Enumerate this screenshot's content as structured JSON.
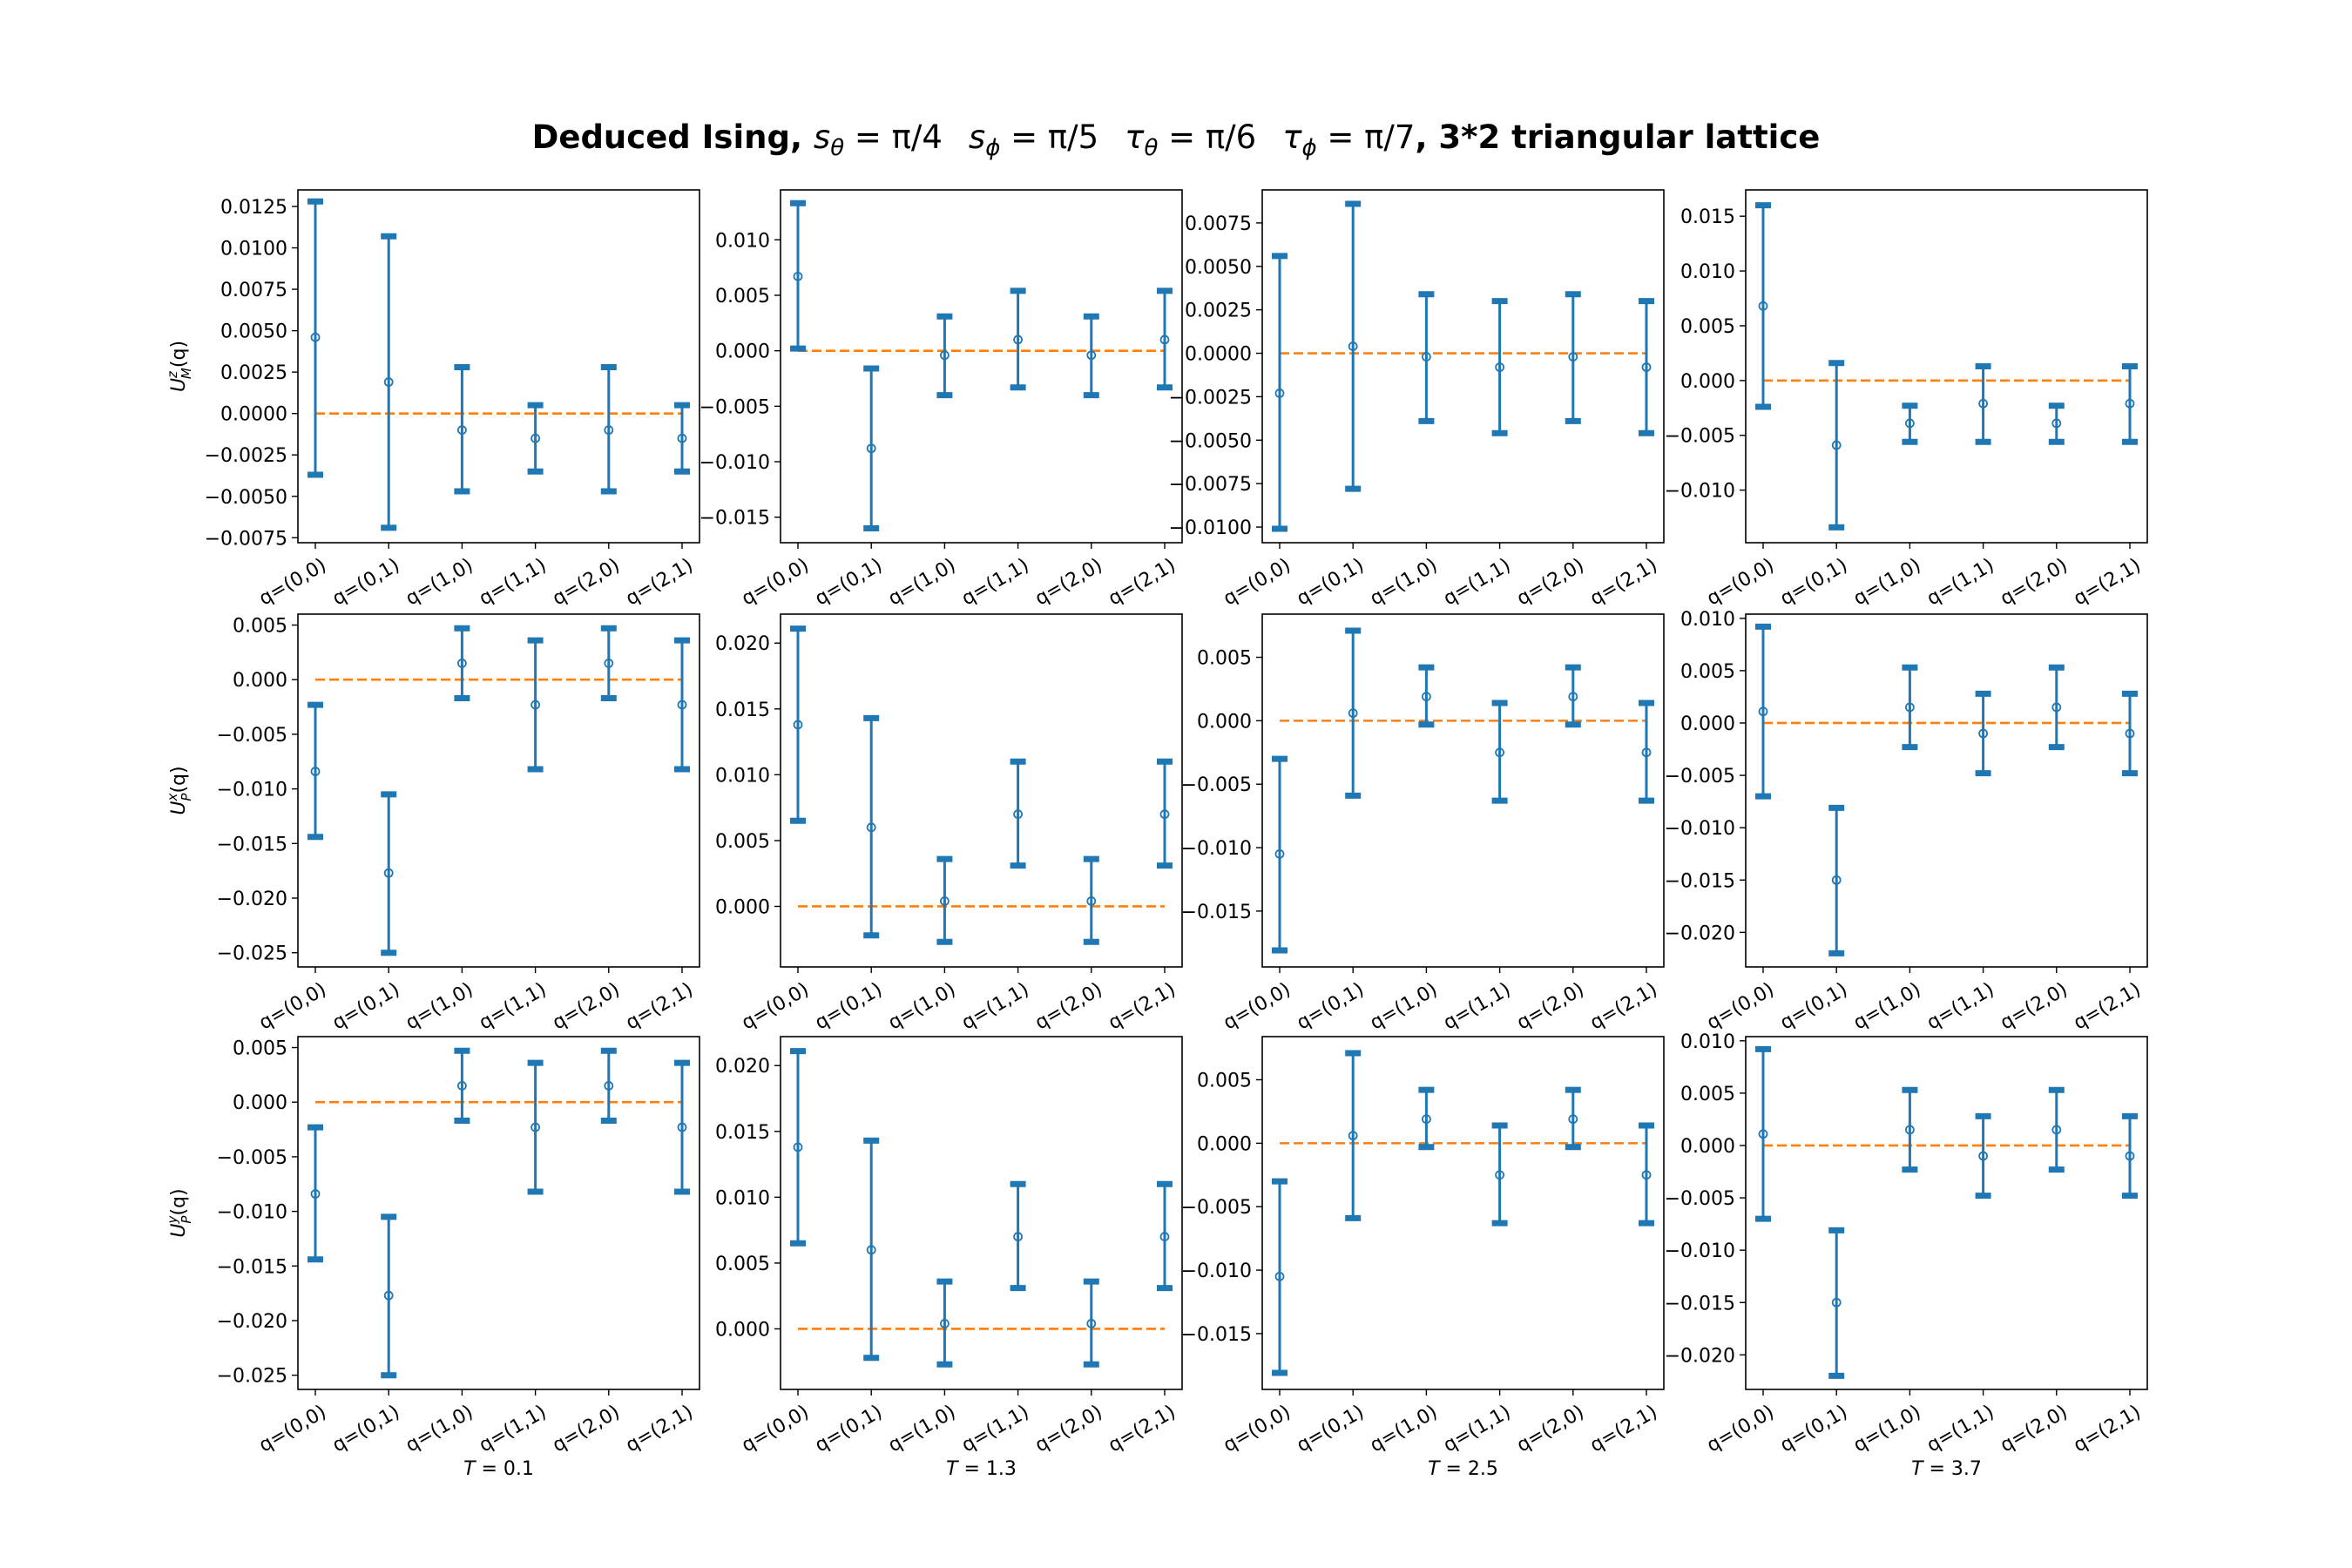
{
  "figure": {
    "title_prefix": "Deduced Ising, ",
    "title_parts": [
      {
        "sym": "s",
        "sub": "θ",
        "val": " = π/4"
      },
      {
        "sym": "s",
        "sub": "ϕ",
        "val": " = π/5"
      },
      {
        "sym": "τ",
        "sub": "θ",
        "val": " = π/6"
      },
      {
        "sym": "τ",
        "sub": "ϕ",
        "val": " = π/7"
      }
    ],
    "title_suffix": ", 3*2 triangular lattice",
    "colors": {
      "errorbar": "#1f77b4",
      "reference": "#ff7f0e",
      "axes": "#000000"
    }
  },
  "chart_data": [
    {
      "type": "errorbar",
      "row": 0,
      "col": 0,
      "ylabel": {
        "sym": "U",
        "sup": "z",
        "sub": "M",
        "arg": "(q)"
      },
      "xlabel": "",
      "categories": [
        "q=(0,0)",
        "q=(0,1)",
        "q=(1,0)",
        "q=(1,1)",
        "q=(2,0)",
        "q=(2,1)"
      ],
      "values": [
        0.0046,
        0.0019,
        -0.001,
        -0.0015,
        -0.001,
        -0.0015
      ],
      "err_low": [
        -0.0037,
        -0.0069,
        -0.0047,
        -0.0035,
        -0.0047,
        -0.0035
      ],
      "err_high": [
        0.0128,
        0.0107,
        0.0028,
        0.0005,
        0.0028,
        0.0005
      ],
      "reference_y": 0,
      "ylim": [
        -0.0078,
        0.0135
      ],
      "yticks": [
        -0.0075,
        -0.005,
        -0.0025,
        0,
        0.0025,
        0.005,
        0.0075,
        0.01,
        0.0125
      ],
      "yticklabels": [
        "−0.0075",
        "−0.0050",
        "−0.0025",
        "0.0000",
        "0.0025",
        "0.0050",
        "0.0075",
        "0.0100",
        "0.0125"
      ]
    },
    {
      "type": "errorbar",
      "row": 0,
      "col": 1,
      "ylabel": null,
      "xlabel": "",
      "categories": [
        "q=(0,0)",
        "q=(0,1)",
        "q=(1,0)",
        "q=(1,1)",
        "q=(2,0)",
        "q=(2,1)"
      ],
      "values": [
        0.0067,
        -0.0088,
        -0.0004,
        0.001,
        -0.0004,
        0.001
      ],
      "err_low": [
        0.0002,
        -0.016,
        -0.004,
        -0.0033,
        -0.004,
        -0.0033
      ],
      "err_high": [
        0.0133,
        -0.0016,
        0.0031,
        0.0054,
        0.0031,
        0.0054
      ],
      "reference_y": 0,
      "ylim": [
        -0.0173,
        0.0145
      ],
      "yticks": [
        -0.015,
        -0.01,
        -0.005,
        0,
        0.005,
        0.01
      ],
      "yticklabels": [
        "−0.015",
        "−0.010",
        "−0.005",
        "0.000",
        "0.005",
        "0.010"
      ]
    },
    {
      "type": "errorbar",
      "row": 0,
      "col": 2,
      "ylabel": null,
      "xlabel": "",
      "categories": [
        "q=(0,0)",
        "q=(0,1)",
        "q=(1,0)",
        "q=(1,1)",
        "q=(2,0)",
        "q=(2,1)"
      ],
      "values": [
        -0.0023,
        0.0004,
        -0.0002,
        -0.0008,
        -0.0002,
        -0.0008
      ],
      "err_low": [
        -0.0101,
        -0.0078,
        -0.0039,
        -0.0046,
        -0.0039,
        -0.0046
      ],
      "err_high": [
        0.0056,
        0.0086,
        0.0034,
        0.003,
        0.0034,
        0.003
      ],
      "reference_y": 0,
      "ylim": [
        -0.0109,
        0.0094
      ],
      "yticks": [
        -0.01,
        -0.0075,
        -0.005,
        -0.0025,
        0,
        0.0025,
        0.005,
        0.0075
      ],
      "yticklabels": [
        "−0.0100",
        "−0.0075",
        "−0.0050",
        "−0.0025",
        "0.0000",
        "0.0025",
        "0.0050",
        "0.0075"
      ]
    },
    {
      "type": "errorbar",
      "row": 0,
      "col": 3,
      "ylabel": null,
      "xlabel": "",
      "categories": [
        "q=(0,0)",
        "q=(0,1)",
        "q=(1,0)",
        "q=(1,1)",
        "q=(2,0)",
        "q=(2,1)"
      ],
      "values": [
        0.0068,
        -0.0059,
        -0.0039,
        -0.0021,
        -0.0039,
        -0.0021
      ],
      "err_low": [
        -0.0024,
        -0.0134,
        -0.0056,
        -0.0056,
        -0.0056,
        -0.0056
      ],
      "err_high": [
        0.016,
        0.0016,
        -0.0023,
        0.0013,
        -0.0023,
        0.0013
      ],
      "reference_y": 0,
      "ylim": [
        -0.0148,
        0.0174
      ],
      "yticks": [
        -0.01,
        -0.005,
        0,
        0.005,
        0.01,
        0.015
      ],
      "yticklabels": [
        "−0.010",
        "−0.005",
        "0.000",
        "0.005",
        "0.010",
        "0.015"
      ]
    },
    {
      "type": "errorbar",
      "row": 1,
      "col": 0,
      "ylabel": {
        "sym": "U",
        "sup": "x",
        "sub": "P",
        "arg": "(q)"
      },
      "xlabel": "",
      "categories": [
        "q=(0,0)",
        "q=(0,1)",
        "q=(1,0)",
        "q=(1,1)",
        "q=(2,0)",
        "q=(2,1)"
      ],
      "values": [
        -0.0084,
        -0.0177,
        0.0015,
        -0.0023,
        0.0015,
        -0.0023
      ],
      "err_low": [
        -0.0144,
        -0.025,
        -0.0017,
        -0.0082,
        -0.0017,
        -0.0082
      ],
      "err_high": [
        -0.0023,
        -0.0105,
        0.0047,
        0.0036,
        0.0047,
        0.0036
      ],
      "reference_y": 0,
      "ylim": [
        -0.0263,
        0.006
      ],
      "yticks": [
        -0.025,
        -0.02,
        -0.015,
        -0.01,
        -0.005,
        0,
        0.005
      ],
      "yticklabels": [
        "−0.025",
        "−0.020",
        "−0.015",
        "−0.010",
        "−0.005",
        "0.000",
        "0.005"
      ]
    },
    {
      "type": "errorbar",
      "row": 1,
      "col": 1,
      "ylabel": null,
      "xlabel": "",
      "categories": [
        "q=(0,0)",
        "q=(0,1)",
        "q=(1,0)",
        "q=(1,1)",
        "q=(2,0)",
        "q=(2,1)"
      ],
      "values": [
        0.0138,
        0.006,
        0.0004,
        0.007,
        0.0004,
        0.007
      ],
      "err_low": [
        0.0065,
        -0.0022,
        -0.0027,
        0.0031,
        -0.0027,
        0.0031
      ],
      "err_high": [
        0.0211,
        0.0143,
        0.0036,
        0.011,
        0.0036,
        0.011
      ],
      "reference_y": 0,
      "ylim": [
        -0.0046,
        0.0222
      ],
      "yticks": [
        0,
        0.005,
        0.01,
        0.015,
        0.02
      ],
      "yticklabels": [
        "0.000",
        "0.005",
        "0.010",
        "0.015",
        "0.020"
      ]
    },
    {
      "type": "errorbar",
      "row": 1,
      "col": 2,
      "ylabel": null,
      "xlabel": "",
      "categories": [
        "q=(0,0)",
        "q=(0,1)",
        "q=(1,0)",
        "q=(1,1)",
        "q=(2,0)",
        "q=(2,1)"
      ],
      "values": [
        -0.0105,
        0.0006,
        0.0019,
        -0.0025,
        0.0019,
        -0.0025
      ],
      "err_low": [
        -0.0181,
        -0.0059,
        -0.0003,
        -0.0063,
        -0.0003,
        -0.0063
      ],
      "err_high": [
        -0.003,
        0.0071,
        0.0042,
        0.0014,
        0.0042,
        0.0014
      ],
      "reference_y": 0,
      "ylim": [
        -0.0194,
        0.0084
      ],
      "yticks": [
        -0.015,
        -0.01,
        -0.005,
        0,
        0.005
      ],
      "yticklabels": [
        "−0.015",
        "−0.010",
        "−0.005",
        "0.000",
        "0.005"
      ]
    },
    {
      "type": "errorbar",
      "row": 1,
      "col": 3,
      "ylabel": null,
      "xlabel": "",
      "categories": [
        "q=(0,0)",
        "q=(0,1)",
        "q=(1,0)",
        "q=(1,1)",
        "q=(2,0)",
        "q=(2,1)"
      ],
      "values": [
        0.0011,
        -0.015,
        0.0015,
        -0.001,
        0.0015,
        -0.001
      ],
      "err_low": [
        -0.007,
        -0.022,
        -0.0023,
        -0.0048,
        -0.0023,
        -0.0048
      ],
      "err_high": [
        0.0092,
        -0.0081,
        0.0053,
        0.0028,
        0.0053,
        0.0028
      ],
      "reference_y": 0,
      "ylim": [
        -0.0233,
        0.0104
      ],
      "yticks": [
        -0.02,
        -0.015,
        -0.01,
        -0.005,
        0,
        0.005,
        0.01
      ],
      "yticklabels": [
        "−0.020",
        "−0.015",
        "−0.010",
        "−0.005",
        "0.000",
        "0.005",
        "0.010"
      ]
    },
    {
      "type": "errorbar",
      "row": 2,
      "col": 0,
      "ylabel": {
        "sym": "U",
        "sup": "y",
        "sub": "P",
        "arg": "(q)"
      },
      "xlabel": "T = 0.1",
      "categories": [
        "q=(0,0)",
        "q=(0,1)",
        "q=(1,0)",
        "q=(1,1)",
        "q=(2,0)",
        "q=(2,1)"
      ],
      "values": [
        -0.0084,
        -0.0177,
        0.0015,
        -0.0023,
        0.0015,
        -0.0023
      ],
      "err_low": [
        -0.0144,
        -0.025,
        -0.0017,
        -0.0082,
        -0.0017,
        -0.0082
      ],
      "err_high": [
        -0.0023,
        -0.0105,
        0.0047,
        0.0036,
        0.0047,
        0.0036
      ],
      "reference_y": 0,
      "ylim": [
        -0.0263,
        0.006
      ],
      "yticks": [
        -0.025,
        -0.02,
        -0.015,
        -0.01,
        -0.005,
        0,
        0.005
      ],
      "yticklabels": [
        "−0.025",
        "−0.020",
        "−0.015",
        "−0.010",
        "−0.005",
        "0.000",
        "0.005"
      ]
    },
    {
      "type": "errorbar",
      "row": 2,
      "col": 1,
      "ylabel": null,
      "xlabel": "T = 1.3",
      "categories": [
        "q=(0,0)",
        "q=(0,1)",
        "q=(1,0)",
        "q=(1,1)",
        "q=(2,0)",
        "q=(2,1)"
      ],
      "values": [
        0.0138,
        0.006,
        0.0004,
        0.007,
        0.0004,
        0.007
      ],
      "err_low": [
        0.0065,
        -0.0022,
        -0.0027,
        0.0031,
        -0.0027,
        0.0031
      ],
      "err_high": [
        0.0211,
        0.0143,
        0.0036,
        0.011,
        0.0036,
        0.011
      ],
      "reference_y": 0,
      "ylim": [
        -0.0046,
        0.0222
      ],
      "yticks": [
        0,
        0.005,
        0.01,
        0.015,
        0.02
      ],
      "yticklabels": [
        "0.000",
        "0.005",
        "0.010",
        "0.015",
        "0.020"
      ]
    },
    {
      "type": "errorbar",
      "row": 2,
      "col": 2,
      "ylabel": null,
      "xlabel": "T = 2.5",
      "categories": [
        "q=(0,0)",
        "q=(0,1)",
        "q=(1,0)",
        "q=(1,1)",
        "q=(2,0)",
        "q=(2,1)"
      ],
      "values": [
        -0.0105,
        0.0006,
        0.0019,
        -0.0025,
        0.0019,
        -0.0025
      ],
      "err_low": [
        -0.0181,
        -0.0059,
        -0.0003,
        -0.0063,
        -0.0003,
        -0.0063
      ],
      "err_high": [
        -0.003,
        0.0071,
        0.0042,
        0.0014,
        0.0042,
        0.0014
      ],
      "reference_y": 0,
      "ylim": [
        -0.0194,
        0.0084
      ],
      "yticks": [
        -0.015,
        -0.01,
        -0.005,
        0,
        0.005
      ],
      "yticklabels": [
        "−0.015",
        "−0.010",
        "−0.005",
        "0.000",
        "0.005"
      ]
    },
    {
      "type": "errorbar",
      "row": 2,
      "col": 3,
      "ylabel": null,
      "xlabel": "T = 3.7",
      "categories": [
        "q=(0,0)",
        "q=(0,1)",
        "q=(1,0)",
        "q=(1,1)",
        "q=(2,0)",
        "q=(2,1)"
      ],
      "values": [
        0.0011,
        -0.015,
        0.0015,
        -0.001,
        0.0015,
        -0.001
      ],
      "err_low": [
        -0.007,
        -0.022,
        -0.0023,
        -0.0048,
        -0.0023,
        -0.0048
      ],
      "err_high": [
        0.0092,
        -0.0081,
        0.0053,
        0.0028,
        0.0053,
        0.0028
      ],
      "reference_y": 0,
      "ylim": [
        -0.0233,
        0.0104
      ],
      "yticks": [
        -0.02,
        -0.015,
        -0.01,
        -0.005,
        0,
        0.005,
        0.01
      ],
      "yticklabels": [
        "−0.020",
        "−0.015",
        "−0.010",
        "−0.005",
        "0.000",
        "0.005",
        "0.010"
      ]
    }
  ]
}
